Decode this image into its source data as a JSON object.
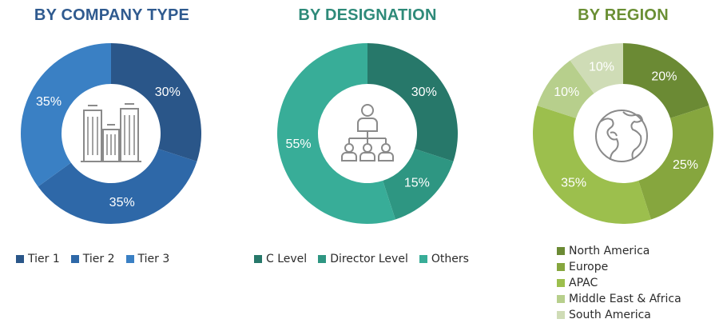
{
  "chart_data": [
    {
      "type": "pie",
      "title": "BY COMPANY TYPE",
      "title_color": "#2f5a8f",
      "categories": [
        "Tier 1",
        "Tier 2",
        "Tier 3"
      ],
      "values": [
        30,
        35,
        35
      ],
      "value_labels": [
        "30%",
        "35%",
        "35%"
      ],
      "colors": [
        "#2a5689",
        "#2e68a8",
        "#3a80c4"
      ],
      "center_icon": "buildings-icon",
      "legend_position": "bottom"
    },
    {
      "type": "pie",
      "title": "BY DESIGNATION",
      "title_color": "#2e8a79",
      "categories": [
        "C Level",
        "Director Level",
        "Others"
      ],
      "values": [
        30,
        15,
        55
      ],
      "value_labels": [
        "30%",
        "15%",
        "55%"
      ],
      "colors": [
        "#27786a",
        "#2e9682",
        "#38ad98"
      ],
      "center_icon": "org-hierarchy-icon",
      "legend_position": "bottom"
    },
    {
      "type": "pie",
      "title": "BY REGION",
      "title_color": "#6a8f34",
      "categories": [
        "North America",
        "Europe",
        "APAC",
        "Middle East & Africa",
        "South America"
      ],
      "values": [
        20,
        25,
        35,
        10,
        10
      ],
      "value_labels": [
        "20%",
        "25%",
        "35%",
        "10%",
        "10%"
      ],
      "colors": [
        "#6b8a34",
        "#86a63e",
        "#9cbf4d",
        "#b7cf8c",
        "#cfdcb6"
      ],
      "label_colors": [
        "#ffffff",
        "#ffffff",
        "#ffffff",
        "#ffffff",
        "#3f3f3f"
      ],
      "center_icon": "globe-icon",
      "legend_position": "bottom-right"
    }
  ]
}
